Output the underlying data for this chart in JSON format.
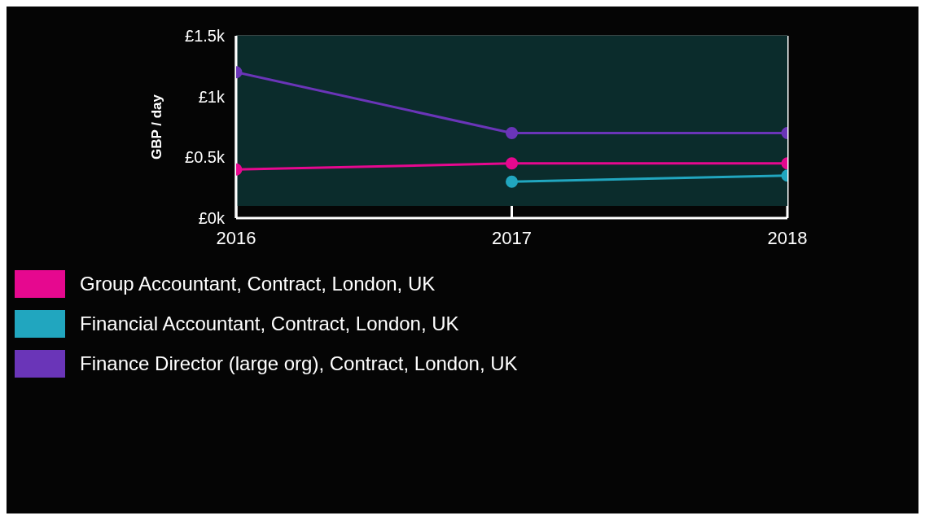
{
  "chart_data": {
    "type": "line",
    "ylabel": "GBP / day",
    "x": [
      2016,
      2017,
      2018
    ],
    "xlim": [
      2016,
      2018
    ],
    "xticks": [
      2016,
      2017,
      2018
    ],
    "ylim": [
      0,
      1.5
    ],
    "yticks": [
      {
        "value": 0,
        "label": "£0k"
      },
      {
        "value": 0.5,
        "label": "£0.5k"
      },
      {
        "value": 1,
        "label": "£1k"
      },
      {
        "value": 1.5,
        "label": "£1.5k"
      }
    ],
    "grid": true,
    "legend": "bottom left",
    "marker": "circle",
    "line_style": "solid",
    "series": [
      {
        "name": "Group Accountant, Contract, London, UK",
        "color": "#e6088f",
        "values": [
          0.4,
          0.45,
          0.45
        ]
      },
      {
        "name": "Financial Accountant, Contract, London, UK",
        "color": "#21a6bf",
        "values": [
          null,
          0.3,
          0.35
        ]
      },
      {
        "name": "Finance Director (large org), Contract, London, UK",
        "color": "#6a35b8",
        "values": [
          1.2,
          0.7,
          0.7
        ]
      }
    ]
  }
}
